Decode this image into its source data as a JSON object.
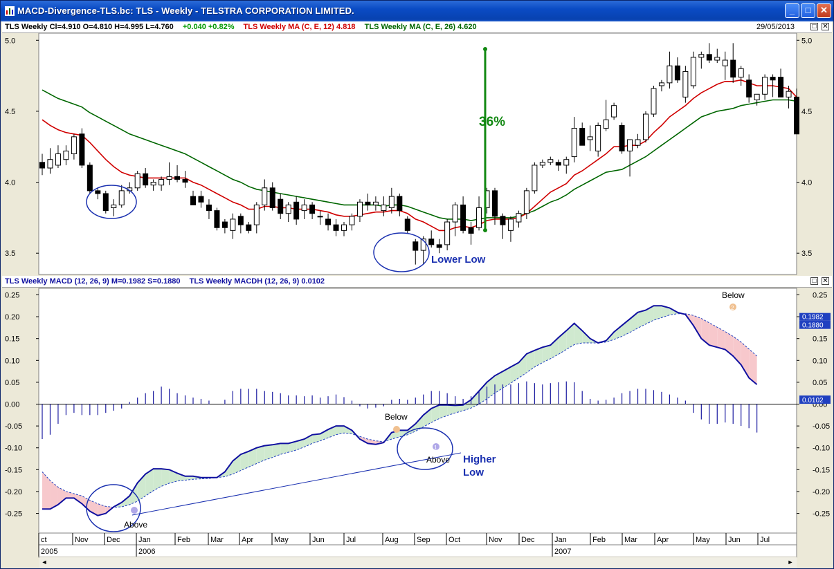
{
  "window": {
    "title": "MACD-Divergence-TLS.bc: TLS - Weekly - TELSTRA CORPORATION LIMITED.",
    "min_label": "_",
    "max_label": "□",
    "close_label": "✕"
  },
  "price_pane": {
    "header": {
      "ohlc": "TLS Weekly  Cl=4.910  O=4.810  H=4.995  L=4.760",
      "change": "+0.040  +0.82%",
      "ma12": "TLS Weekly MA (C, E, 12) 4.818",
      "ma26": "TLS Weekly MA (C, E, 26) 4.620",
      "date": "29/05/2013"
    },
    "restore_label": "□",
    "close_label": "✕"
  },
  "macd_pane": {
    "header": {
      "macd": "TLS Weekly MACD (12, 26, 9)  M=0.1982  S=0.1880",
      "macdh": "TLS Weekly MACDH (12, 26, 9) 0.0102"
    },
    "restore_label": "□",
    "close_label": "✕"
  },
  "colors": {
    "ma12": "#d00000",
    "ma26": "#006600",
    "macd": "#1010a0",
    "signal": "#2040c0",
    "hist": "#1a1aa0",
    "annot": "#1a30b0",
    "pct": "#118811",
    "green_fill": "#cfe9cf",
    "red_fill": "#f7c8cc"
  },
  "chart_data": [
    {
      "type": "candlestick",
      "title": "TLS - Weekly",
      "yticks": [
        3.5,
        4.0,
        4.5,
        5.0
      ],
      "ytick_labels": [
        "3.5",
        "4.0",
        "4.5",
        "5.0"
      ],
      "ylim": [
        3.35,
        5.05
      ],
      "grid": false,
      "xlim": [
        0,
        95
      ],
      "candles": [
        [
          4.14,
          4.2,
          4.05,
          4.1
        ],
        [
          4.1,
          4.24,
          4.06,
          4.16
        ],
        [
          4.12,
          4.26,
          4.1,
          4.2
        ],
        [
          4.16,
          4.26,
          4.12,
          4.22
        ],
        [
          4.2,
          4.34,
          4.16,
          4.32
        ],
        [
          4.34,
          4.38,
          4.1,
          4.12
        ],
        [
          4.12,
          4.14,
          3.92,
          3.94
        ],
        [
          3.94,
          3.96,
          3.88,
          3.92
        ],
        [
          3.92,
          3.94,
          3.78,
          3.8
        ],
        [
          3.82,
          3.88,
          3.76,
          3.84
        ],
        [
          3.84,
          3.98,
          3.82,
          3.94
        ],
        [
          3.94,
          4.0,
          3.92,
          3.96
        ],
        [
          3.96,
          4.08,
          3.94,
          4.06
        ],
        [
          4.06,
          4.1,
          3.96,
          3.98
        ],
        [
          3.98,
          4.02,
          3.94,
          4.0
        ],
        [
          3.98,
          4.04,
          3.94,
          4.02
        ],
        [
          4.02,
          4.14,
          3.98,
          4.04
        ],
        [
          4.04,
          4.12,
          4.0,
          4.02
        ],
        [
          4.02,
          4.08,
          3.96,
          4.0
        ],
        [
          3.9,
          3.94,
          3.84,
          3.84
        ],
        [
          3.9,
          3.94,
          3.82,
          3.86
        ],
        [
          3.84,
          3.88,
          3.74,
          3.8
        ],
        [
          3.8,
          3.82,
          3.66,
          3.68
        ],
        [
          3.72,
          3.74,
          3.64,
          3.68
        ],
        [
          3.66,
          3.78,
          3.6,
          3.74
        ],
        [
          3.76,
          3.78,
          3.64,
          3.7
        ],
        [
          3.7,
          3.72,
          3.64,
          3.66
        ],
        [
          3.7,
          3.86,
          3.64,
          3.84
        ],
        [
          3.84,
          4.02,
          3.8,
          3.96
        ],
        [
          3.96,
          4.0,
          3.8,
          3.82
        ],
        [
          3.88,
          3.92,
          3.74,
          3.78
        ],
        [
          3.78,
          3.86,
          3.72,
          3.84
        ],
        [
          3.86,
          3.9,
          3.7,
          3.74
        ],
        [
          3.8,
          3.88,
          3.74,
          3.84
        ],
        [
          3.84,
          3.86,
          3.74,
          3.78
        ],
        [
          3.76,
          3.8,
          3.7,
          3.76
        ],
        [
          3.74,
          3.78,
          3.66,
          3.7
        ],
        [
          3.7,
          3.74,
          3.62,
          3.66
        ],
        [
          3.66,
          3.72,
          3.62,
          3.7
        ],
        [
          3.7,
          3.78,
          3.66,
          3.76
        ],
        [
          3.76,
          3.88,
          3.72,
          3.86
        ],
        [
          3.86,
          3.92,
          3.8,
          3.84
        ],
        [
          3.84,
          3.9,
          3.8,
          3.86
        ],
        [
          3.8,
          3.9,
          3.76,
          3.84
        ],
        [
          3.82,
          3.96,
          3.78,
          3.9
        ],
        [
          3.9,
          3.92,
          3.76,
          3.8
        ],
        [
          3.74,
          3.76,
          3.64,
          3.66
        ],
        [
          3.58,
          3.6,
          3.42,
          3.52
        ],
        [
          3.52,
          3.62,
          3.42,
          3.6
        ],
        [
          3.6,
          3.66,
          3.54,
          3.56
        ],
        [
          3.56,
          3.6,
          3.5,
          3.54
        ],
        [
          3.56,
          3.74,
          3.52,
          3.72
        ],
        [
          3.72,
          3.86,
          3.62,
          3.84
        ],
        [
          3.84,
          3.9,
          3.64,
          3.66
        ],
        [
          3.68,
          3.72,
          3.56,
          3.64
        ],
        [
          3.68,
          3.9,
          3.66,
          3.82
        ],
        [
          3.82,
          3.96,
          3.78,
          3.94
        ],
        [
          3.94,
          3.96,
          3.7,
          3.76
        ],
        [
          3.76,
          3.78,
          3.6,
          3.7
        ],
        [
          3.66,
          3.76,
          3.58,
          3.74
        ],
        [
          3.72,
          3.8,
          3.68,
          3.78
        ],
        [
          3.78,
          3.96,
          3.74,
          3.94
        ],
        [
          3.94,
          4.14,
          3.92,
          4.12
        ],
        [
          4.12,
          4.16,
          4.1,
          4.14
        ],
        [
          4.14,
          4.18,
          4.12,
          4.16
        ],
        [
          4.14,
          4.16,
          4.08,
          4.12
        ],
        [
          4.12,
          4.18,
          4.06,
          4.16
        ],
        [
          4.18,
          4.46,
          4.14,
          4.38
        ],
        [
          4.38,
          4.42,
          4.26,
          4.26
        ],
        [
          4.3,
          4.4,
          4.22,
          4.32
        ],
        [
          4.22,
          4.42,
          4.18,
          4.4
        ],
        [
          4.38,
          4.58,
          4.36,
          4.44
        ],
        [
          4.46,
          4.56,
          4.44,
          4.54
        ],
        [
          4.4,
          4.42,
          4.2,
          4.22
        ],
        [
          4.22,
          4.3,
          4.04,
          4.3
        ],
        [
          4.26,
          4.34,
          4.24,
          4.3
        ],
        [
          4.3,
          4.5,
          4.28,
          4.48
        ],
        [
          4.48,
          4.68,
          4.46,
          4.66
        ],
        [
          4.68,
          4.72,
          4.64,
          4.7
        ],
        [
          4.7,
          4.92,
          4.66,
          4.82
        ],
        [
          4.82,
          4.88,
          4.7,
          4.72
        ],
        [
          4.6,
          4.82,
          4.56,
          4.78
        ],
        [
          4.68,
          4.92,
          4.66,
          4.88
        ],
        [
          4.88,
          4.92,
          4.8,
          4.9
        ],
        [
          4.9,
          4.98,
          4.84,
          4.86
        ],
        [
          4.86,
          4.94,
          4.84,
          4.88
        ],
        [
          4.82,
          4.92,
          4.72,
          4.86
        ],
        [
          4.86,
          4.98,
          4.7,
          4.74
        ],
        [
          4.74,
          4.82,
          4.68,
          4.8
        ],
        [
          4.72,
          4.76,
          4.56,
          4.6
        ],
        [
          4.58,
          4.62,
          4.54,
          4.62
        ],
        [
          4.62,
          4.76,
          4.58,
          4.74
        ],
        [
          4.74,
          4.76,
          4.6,
          4.72
        ],
        [
          4.74,
          4.8,
          4.6,
          4.6
        ],
        [
          4.6,
          4.68,
          4.52,
          4.64
        ],
        [
          4.6,
          4.66,
          4.34,
          4.34
        ]
      ],
      "ma12": [
        4.44,
        4.4,
        4.37,
        4.35,
        4.34,
        4.33,
        4.28,
        4.22,
        4.16,
        4.11,
        4.07,
        4.05,
        4.04,
        4.03,
        4.03,
        4.03,
        4.03,
        4.03,
        4.03,
        4.0,
        3.98,
        3.95,
        3.92,
        3.89,
        3.86,
        3.84,
        3.81,
        3.81,
        3.83,
        3.83,
        3.82,
        3.82,
        3.81,
        3.81,
        3.81,
        3.8,
        3.79,
        3.77,
        3.76,
        3.76,
        3.77,
        3.78,
        3.79,
        3.79,
        3.8,
        3.8,
        3.78,
        3.74,
        3.72,
        3.69,
        3.66,
        3.66,
        3.68,
        3.69,
        3.68,
        3.7,
        3.73,
        3.74,
        3.74,
        3.74,
        3.75,
        3.78,
        3.83,
        3.88,
        3.93,
        3.96,
        3.99,
        4.05,
        4.08,
        4.12,
        4.16,
        4.2,
        4.25,
        4.25,
        4.26,
        4.26,
        4.29,
        4.35,
        4.4,
        4.46,
        4.5,
        4.54,
        4.59,
        4.63,
        4.66,
        4.69,
        4.71,
        4.71,
        4.72,
        4.7,
        4.68,
        4.68,
        4.68,
        4.67,
        4.66,
        4.6
      ],
      "ma26": [
        4.65,
        4.62,
        4.59,
        4.57,
        4.55,
        4.53,
        4.49,
        4.46,
        4.43,
        4.4,
        4.37,
        4.34,
        4.32,
        4.3,
        4.28,
        4.26,
        4.24,
        4.22,
        4.2,
        4.17,
        4.14,
        4.11,
        4.08,
        4.05,
        4.02,
        4.0,
        3.97,
        3.95,
        3.94,
        3.93,
        3.92,
        3.91,
        3.9,
        3.89,
        3.88,
        3.87,
        3.86,
        3.85,
        3.84,
        3.84,
        3.84,
        3.84,
        3.84,
        3.83,
        3.84,
        3.84,
        3.83,
        3.81,
        3.79,
        3.77,
        3.75,
        3.74,
        3.74,
        3.74,
        3.73,
        3.74,
        3.75,
        3.75,
        3.75,
        3.75,
        3.76,
        3.78,
        3.8,
        3.83,
        3.86,
        3.88,
        3.91,
        3.95,
        3.98,
        4.01,
        4.04,
        4.07,
        4.08,
        4.09,
        4.12,
        4.15,
        4.18,
        4.22,
        4.26,
        4.3,
        4.34,
        4.38,
        4.42,
        4.46,
        4.48,
        4.5,
        4.51,
        4.52,
        4.54,
        4.55,
        4.56,
        4.57,
        4.58,
        4.58,
        4.58,
        4.57
      ],
      "annotations": {
        "pct": "36%",
        "lower_low": "Lower Low"
      }
    },
    {
      "type": "line",
      "title": "TLS Weekly MACD (12, 26, 9)",
      "yticks": [
        -0.25,
        -0.2,
        -0.15,
        -0.1,
        -0.05,
        0.0,
        0.05,
        0.1,
        0.15,
        0.2,
        0.25
      ],
      "ytick_labels": [
        "-0.25",
        "-0.20",
        "-0.15",
        "-0.10",
        "-0.05",
        "0.00",
        "0.05",
        "0.10",
        "0.15",
        "0.20",
        "0.25"
      ],
      "ylim": [
        -0.295,
        0.265
      ],
      "xlim": [
        0,
        95
      ],
      "series": [
        {
          "name": "MACD",
          "values": [
            -0.24,
            -0.24,
            -0.23,
            -0.215,
            -0.215,
            -0.228,
            -0.245,
            -0.255,
            -0.25,
            -0.235,
            -0.225,
            -0.21,
            -0.18,
            -0.16,
            -0.148,
            -0.148,
            -0.15,
            -0.158,
            -0.165,
            -0.165,
            -0.168,
            -0.168,
            -0.168,
            -0.155,
            -0.13,
            -0.115,
            -0.108,
            -0.1,
            -0.095,
            -0.093,
            -0.09,
            -0.09,
            -0.085,
            -0.08,
            -0.07,
            -0.068,
            -0.058,
            -0.05,
            -0.05,
            -0.06,
            -0.08,
            -0.09,
            -0.092,
            -0.088,
            -0.065,
            -0.06,
            -0.06,
            -0.045,
            -0.025,
            -0.01,
            -0.002,
            -0.002,
            -0.003,
            -0.002,
            0.01,
            0.03,
            0.05,
            0.065,
            0.075,
            0.085,
            0.095,
            0.115,
            0.123,
            0.13,
            0.135,
            0.152,
            0.168,
            0.185,
            0.168,
            0.15,
            0.14,
            0.145,
            0.165,
            0.18,
            0.195,
            0.21,
            0.215,
            0.225,
            0.225,
            0.22,
            0.21,
            0.205,
            0.18,
            0.15,
            0.135,
            0.13,
            0.125,
            0.11,
            0.09,
            0.06,
            0.045
          ]
        },
        {
          "name": "Signal",
          "values": [
            -0.155,
            -0.175,
            -0.19,
            -0.2,
            -0.205,
            -0.21,
            -0.22,
            -0.228,
            -0.234,
            -0.236,
            -0.235,
            -0.23,
            -0.222,
            -0.21,
            -0.198,
            -0.188,
            -0.181,
            -0.176,
            -0.174,
            -0.172,
            -0.171,
            -0.17,
            -0.168,
            -0.166,
            -0.16,
            -0.152,
            -0.144,
            -0.136,
            -0.128,
            -0.122,
            -0.115,
            -0.11,
            -0.105,
            -0.098,
            -0.09,
            -0.084,
            -0.077,
            -0.07,
            -0.066,
            -0.068,
            -0.074,
            -0.08,
            -0.084,
            -0.086,
            -0.08,
            -0.075,
            -0.07,
            -0.062,
            -0.052,
            -0.042,
            -0.033,
            -0.026,
            -0.02,
            -0.015,
            -0.009,
            0.0,
            0.012,
            0.025,
            0.037,
            0.048,
            0.06,
            0.072,
            0.085,
            0.095,
            0.104,
            0.114,
            0.125,
            0.136,
            0.14,
            0.14,
            0.14,
            0.142,
            0.148,
            0.155,
            0.164,
            0.174,
            0.183,
            0.192,
            0.198,
            0.204,
            0.207,
            0.207,
            0.203,
            0.196,
            0.186,
            0.176,
            0.166,
            0.155,
            0.142,
            0.126,
            0.11
          ]
        },
        {
          "name": "MACDH",
          "values": [
            -0.08,
            -0.07,
            -0.045,
            -0.025,
            -0.02,
            -0.025,
            -0.025,
            -0.025,
            -0.02,
            -0.015,
            -0.01,
            0.005,
            0.015,
            0.025,
            0.03,
            0.04,
            0.035,
            0.025,
            0.02,
            0.015,
            0.012,
            0.008,
            0.0,
            0.01,
            0.03,
            0.035,
            0.035,
            0.035,
            0.03,
            0.028,
            0.025,
            0.02,
            0.02,
            0.018,
            0.02,
            0.015,
            0.018,
            0.022,
            0.016,
            0.008,
            -0.005,
            -0.01,
            -0.008,
            -0.005,
            0.01,
            0.012,
            0.01,
            0.015,
            0.022,
            0.03,
            0.03,
            0.025,
            0.018,
            0.012,
            0.018,
            0.03,
            0.04,
            0.045,
            0.045,
            0.045,
            0.048,
            0.052,
            0.048,
            0.045,
            0.048,
            0.05,
            0.052,
            0.05,
            0.03,
            0.012,
            0.008,
            0.01,
            0.015,
            0.025,
            0.03,
            0.035,
            0.035,
            0.032,
            0.028,
            0.022,
            0.015,
            0.008,
            -0.02,
            -0.035,
            -0.045,
            -0.045,
            -0.042,
            -0.045,
            -0.05,
            -0.055,
            -0.065
          ]
        }
      ],
      "value_labels": {
        "signal": "0.1880",
        "hist": "0.0102",
        "macd_hidden": "0.1982"
      },
      "annotations": {
        "above1": "Above",
        "below1": "Below",
        "above2": "Above",
        "below2": "Below",
        "higher_low": "Higher\nLow",
        "num1": "1",
        "num2": "2"
      }
    }
  ],
  "x_axis": {
    "months": [
      "ct",
      "Nov",
      "Dec",
      "Jan",
      "Feb",
      "Mar",
      "Apr",
      "May",
      "Jun",
      "Jul",
      "Aug",
      "Sep",
      "Oct",
      "Nov",
      "Dec",
      "Jan",
      "Feb",
      "Mar",
      "Apr",
      "May",
      "Jun",
      "Jul"
    ],
    "years": [
      "2005",
      "2006",
      "2007"
    ]
  },
  "scrollbar": {
    "left_arrow": "◄",
    "right_arrow": "►"
  }
}
